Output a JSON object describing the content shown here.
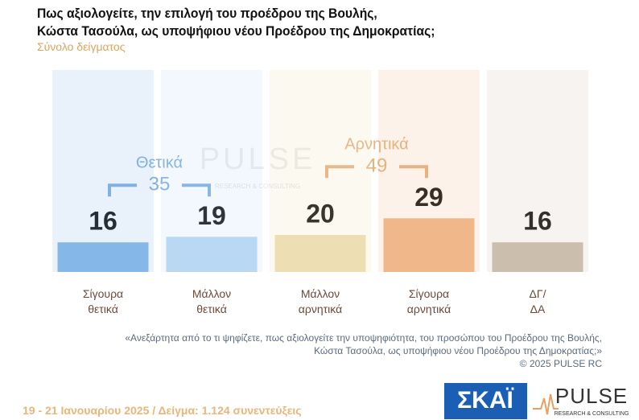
{
  "chart_data": {
    "type": "bar",
    "title": "Πως αξιολογείτε, την επιλογή του προέδρου της Βουλής,\nΚώστα Τασούλα, ως υποψήφιου νέου Προέδρου της Δημοκρατίας;",
    "subtitle": "Σύνολο δείγματος",
    "categories": [
      "Σίγουρα\nθετικά",
      "Μάλλον\nθετικά",
      "Μάλλον\nαρνητικά",
      "Σίγουρα\nαρνητικά",
      "ΔΓ/\nΔΑ"
    ],
    "values": [
      16,
      19,
      20,
      29,
      16
    ],
    "colors": [
      "#86b9ea",
      "#b9d8f4",
      "#eedfb4",
      "#f1b98a",
      "#cbbfac"
    ],
    "groups": [
      {
        "label": "Θετικά",
        "value": 35,
        "color": "#7fb0e0"
      },
      {
        "label": "Αρνητικά",
        "value": 49,
        "color": "#e9b07e"
      }
    ],
    "footnote": "«Ανεξάρτητα από το τι ψηφίζετε, πως αξιολογείτε την υποψηφιότητα, του προσώπου του Προέδρου της Βουλής,\nΚώστα Τασούλα, ως υποψήφιου νέου Προέδρου της Δημοκρατίας;»",
    "copyright": "©  2025  PULSE RC",
    "footer": "19 - 21 Ιανουαρίου 2025  /  Δείγμα:  1.124 συνεντεύξεις",
    "logos": {
      "skai": "ΣΚΑΪ",
      "pulse": "PULSE",
      "pulse_tagline": "RESEARCH & CONSULTING"
    }
  }
}
